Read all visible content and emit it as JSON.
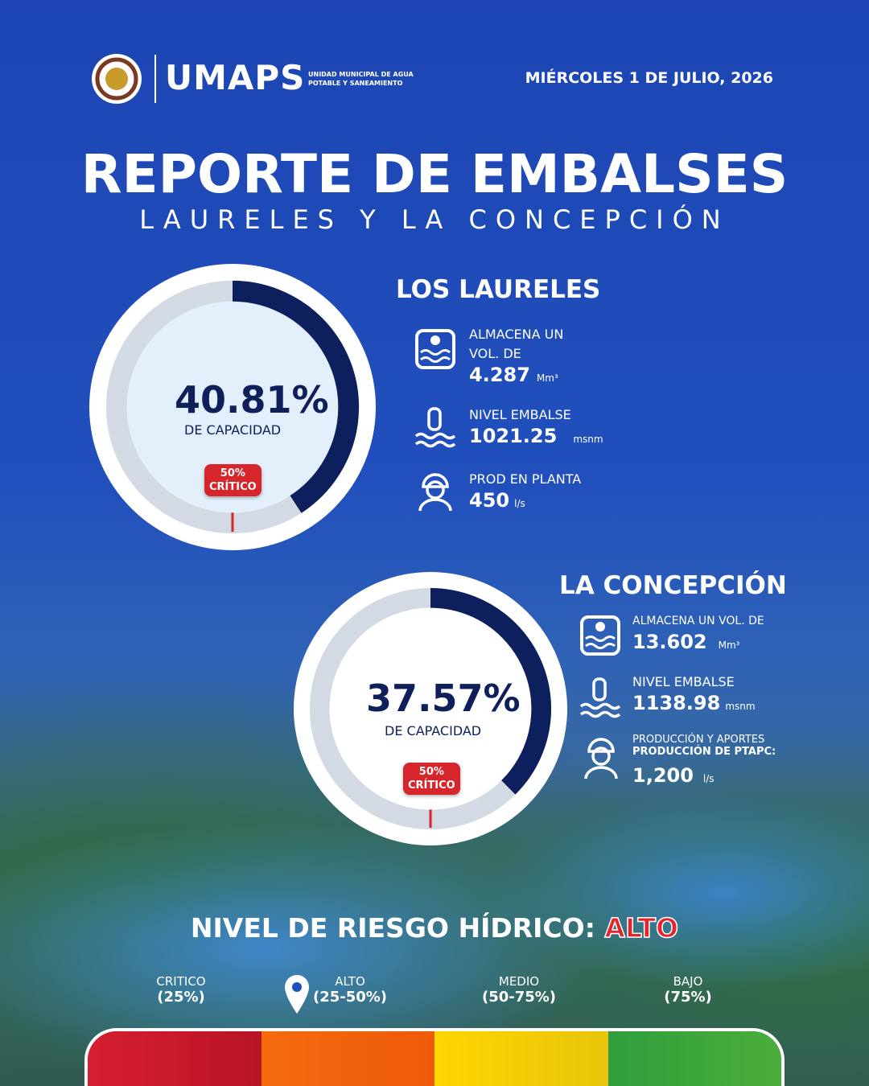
{
  "header": {
    "brand": "UMAPS",
    "org_line1": "UNIDAD MUNICIPAL DE AGUA",
    "org_line2": "POTABLE Y SANEAMIENTO",
    "date": "MIÉRCOLES 1 DE JULIO, 2026"
  },
  "title": "REPORTE DE EMBALSES",
  "subtitle": "LAURELES Y LA CONCEPCIÓN",
  "reservoirs": [
    {
      "name": "LOS LAURELES",
      "capacity": {
        "value": 40.81,
        "label": "40.81%"
      },
      "capacity_caption": "DE CAPACIDAD",
      "critical": {
        "value": 50,
        "label": "50%"
      },
      "critical_text": "CRÍTICO",
      "stats": [
        {
          "label": "ALMACENA UN VOL. DE",
          "value": "4.287",
          "unit": "Mm³"
        },
        {
          "label": "NIVEL EMBALSE",
          "value": "1021.25",
          "unit": "msnm"
        },
        {
          "label": "PROD EN PLANTA",
          "value": "450",
          "unit": "l/s"
        }
      ]
    },
    {
      "name": "LA CONCEPCIÓN",
      "capacity": {
        "value": 37.57,
        "label": "37.57%"
      },
      "capacity_caption": "DE CAPACIDAD",
      "critical": {
        "value": 50,
        "label": "50%"
      },
      "critical_text": "CRÍTICO",
      "stats": [
        {
          "label": "ALMACENA UN VOL. DE",
          "value": "13.602",
          "unit": "Mm³"
        },
        {
          "label": "NIVEL EMBALSE",
          "value": "1138.98",
          "unit": "msnm"
        },
        {
          "label": "PRODUCCIÓN Y APORTES",
          "sublabel": "PRODUCCIÓN DE PTAPC:",
          "value": "1,200",
          "unit": "l/s"
        }
      ]
    }
  ],
  "risk": {
    "title": "NIVEL DE RIESGO HÍDRICO:",
    "level": "ALTO",
    "scale": [
      {
        "name": "CRITICO",
        "range": "(25%)"
      },
      {
        "name": "ALTO",
        "range": "(25-50%)"
      },
      {
        "name": "MEDIO",
        "range": "(50-75%)"
      },
      {
        "name": "BAJO",
        "range": "(75%)"
      }
    ]
  }
}
